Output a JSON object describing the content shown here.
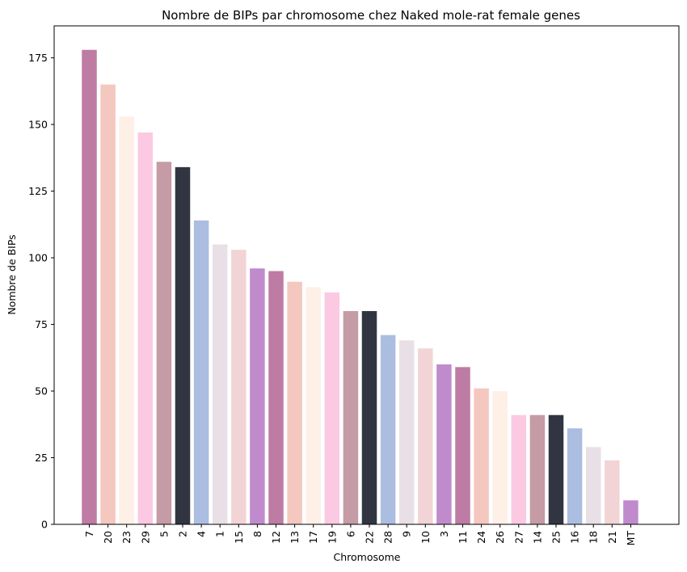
{
  "chart_data": {
    "type": "bar",
    "title": "Nombre de BIPs par chromosome chez Naked mole-rat female genes",
    "xlabel": "Chromosome",
    "ylabel": "Nombre de BIPs",
    "ylim": [
      0,
      187
    ],
    "yticks": [
      0,
      25,
      50,
      75,
      100,
      125,
      150,
      175
    ],
    "grid": false,
    "categories": [
      "7",
      "20",
      "23",
      "29",
      "5",
      "2",
      "4",
      "1",
      "15",
      "8",
      "12",
      "13",
      "17",
      "19",
      "6",
      "22",
      "28",
      "9",
      "10",
      "3",
      "11",
      "24",
      "26",
      "27",
      "14",
      "25",
      "16",
      "18",
      "21",
      "MT"
    ],
    "values": [
      178,
      165,
      153,
      147,
      136,
      134,
      114,
      105,
      103,
      96,
      95,
      91,
      89,
      87,
      80,
      80,
      71,
      69,
      66,
      60,
      59,
      51,
      50,
      41,
      41,
      41,
      36,
      29,
      24,
      9
    ],
    "colors": [
      "#BE7BA4",
      "#F4C7BF",
      "#FEF0E6",
      "#FCC9E3",
      "#C59BA5",
      "#313542",
      "#ABBDE0",
      "#E8E0E6",
      "#F2D4D6",
      "#C08BCC",
      "#BE7BA4",
      "#F4C7BF",
      "#FEF0E6",
      "#FCC9E3",
      "#C59BA5",
      "#313542",
      "#ABBDE0",
      "#E8E0E6",
      "#F2D4D6",
      "#C08BCC",
      "#BE7BA4",
      "#F4C7BF",
      "#FEF0E6",
      "#FCC9E3",
      "#C59BA5",
      "#313542",
      "#ABBDE0",
      "#E8E0E6",
      "#F2D4D6",
      "#C08BCC"
    ]
  }
}
